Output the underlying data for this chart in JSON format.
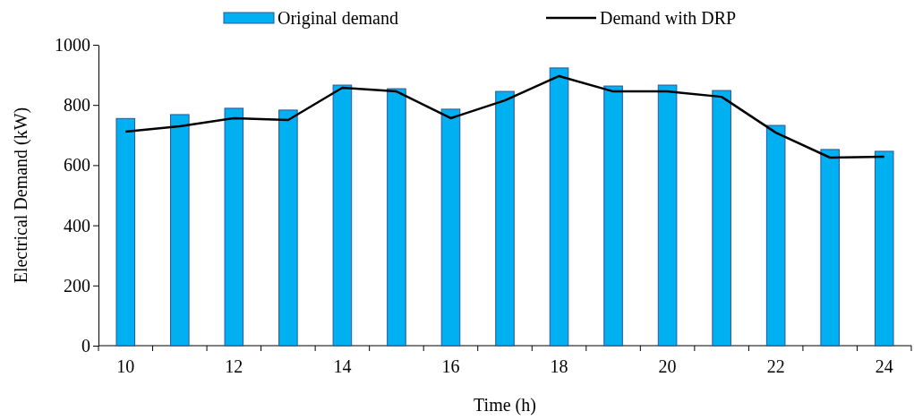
{
  "chart_data": {
    "type": "bar",
    "xlabel": "Time (h)",
    "ylabel": "Electrical Demand (kW)",
    "categories": [
      "10",
      null,
      "12",
      null,
      "14",
      null,
      "16",
      null,
      "18",
      null,
      "20",
      null,
      "22",
      null,
      "24"
    ],
    "ylim": [
      0,
      1000
    ],
    "yticks": [
      0,
      200,
      400,
      600,
      800,
      1000
    ],
    "grid": false,
    "legend": "top",
    "series": [
      {
        "name": "Original demand",
        "color": "#00b0f0",
        "values": [
          755,
          768,
          789,
          783,
          866,
          854,
          786,
          845,
          923,
          863,
          866,
          848,
          732,
          652,
          646
        ]
      },
      {
        "name": "Demand with DRP",
        "type": "line",
        "color": "#000000",
        "marker": "none",
        "values": [
          711,
          729,
          756,
          750,
          857,
          845,
          756,
          815,
          896,
          845,
          845,
          827,
          708,
          625,
          628
        ]
      }
    ]
  }
}
